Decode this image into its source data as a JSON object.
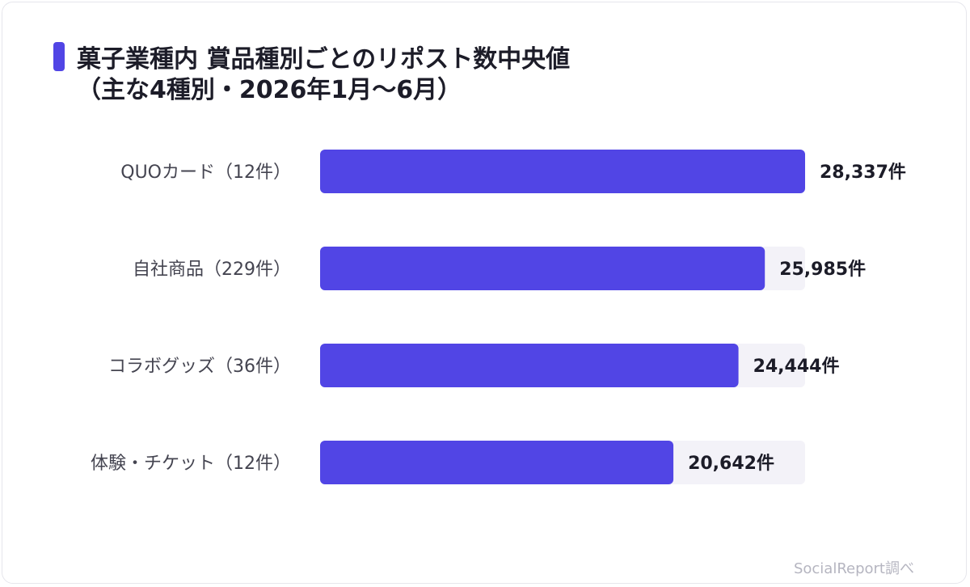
{
  "title": "菓子業種内 賞品種別ごとのリポスト数中央値\n（主な4種別・2026年1月〜6月）",
  "footer": "SocialReport調べ",
  "colors": {
    "bar": "#5145e5",
    "track": "#f3f2f8",
    "label": "#444450",
    "value": "#1c1c28"
  },
  "chart_data": {
    "type": "bar",
    "orientation": "horizontal",
    "categories": [
      "QUOカード（12件）",
      "自社商品（229件）",
      "コラボグッズ（36件）",
      "体験・チケット（12件）"
    ],
    "values": [
      28337,
      25985,
      24444,
      20642
    ],
    "value_labels": [
      "28,337件",
      "25,985件",
      "24,444件",
      "20,642件"
    ],
    "xlim": [
      0,
      28337
    ]
  }
}
